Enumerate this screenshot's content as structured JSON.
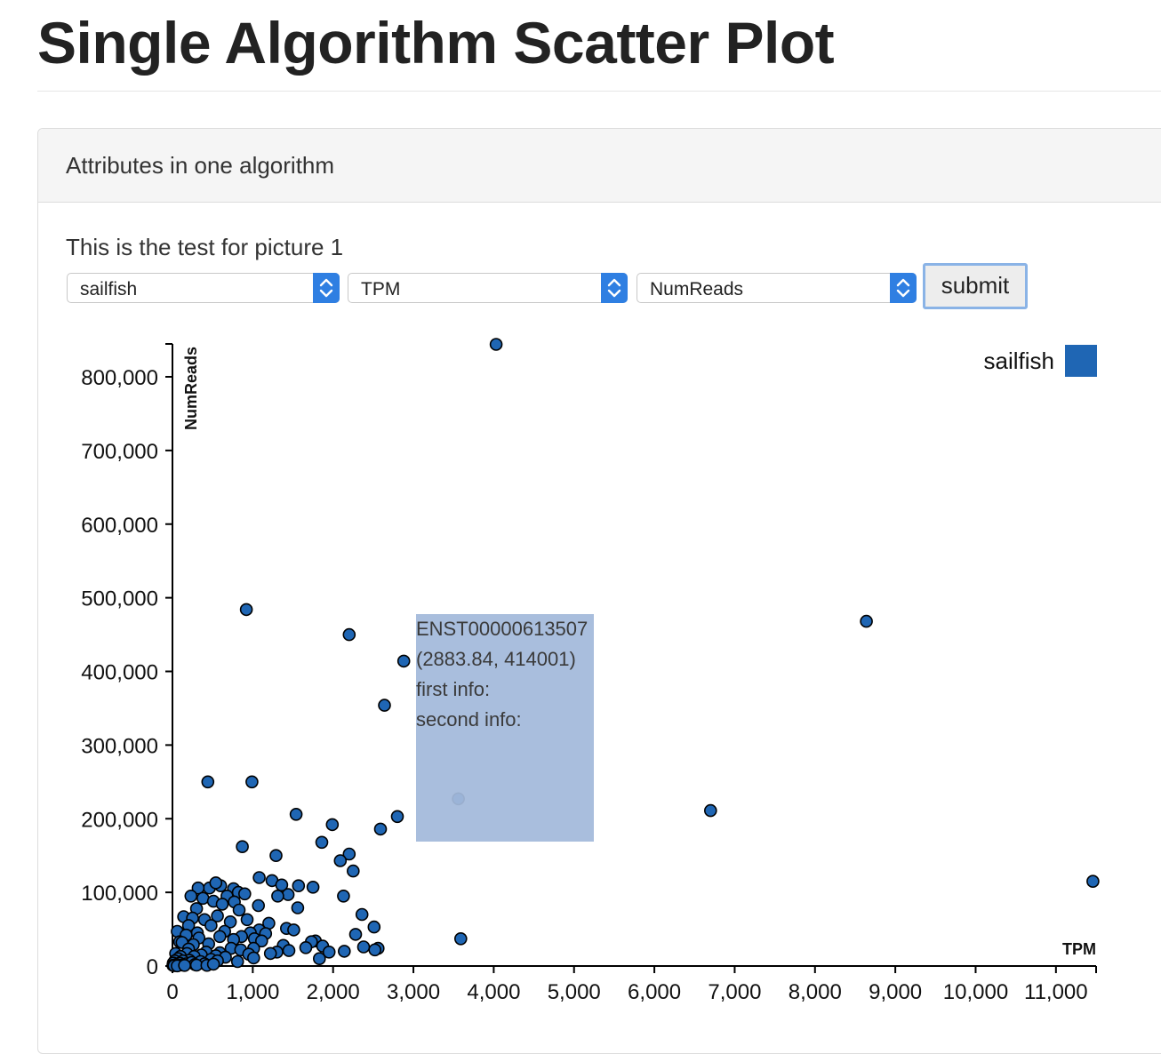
{
  "page": {
    "title": "Single Algorithm Scatter Plot"
  },
  "panel": {
    "heading": "Attributes in one algorithm",
    "subtitle": "This is the test for picture 1"
  },
  "controls": {
    "algorithm_select": "sailfish",
    "x_attribute_select": "TPM",
    "y_attribute_select": "NumReads",
    "submit_label": "submit"
  },
  "tooltip": {
    "id": "ENST00000613507",
    "coords": "(2883.84, 414001)",
    "first_info": "first info:",
    "second_info": "second info:"
  },
  "colors": {
    "series": "#1f66b4",
    "tooltip_bg": "#96b0d6",
    "select_arrow": "#2f7fe2"
  },
  "chart_data": {
    "type": "scatter",
    "xlabel": "TPM",
    "ylabel": "NumReads",
    "xlim": [
      0,
      11500
    ],
    "ylim": [
      0,
      845000
    ],
    "x_ticks": [
      0,
      1000,
      2000,
      3000,
      4000,
      5000,
      6000,
      7000,
      8000,
      9000,
      10000,
      11000
    ],
    "x_tick_labels": [
      "0",
      "1,000",
      "2,000",
      "3,000",
      "4,000",
      "5,000",
      "6,000",
      "7,000",
      "8,000",
      "9,000",
      "10,000",
      "11,000"
    ],
    "y_ticks": [
      0,
      100000,
      200000,
      300000,
      400000,
      500000,
      600000,
      700000,
      800000
    ],
    "y_tick_labels": [
      "0",
      "100,000",
      "200,000",
      "300,000",
      "400,000",
      "500,000",
      "600,000",
      "700,000",
      "800,000"
    ],
    "legend": {
      "position": "top-right",
      "entries": [
        "sailfish"
      ]
    },
    "grid": false,
    "series": [
      {
        "name": "sailfish",
        "points": [
          [
            4030,
            844000
          ],
          [
            920,
            484000
          ],
          [
            8640,
            468000
          ],
          [
            2200,
            450000
          ],
          [
            2880,
            414000
          ],
          [
            2640,
            354000
          ],
          [
            440,
            250000
          ],
          [
            990,
            250000
          ],
          [
            6700,
            211000
          ],
          [
            3560,
            227000
          ],
          [
            1540,
            206000
          ],
          [
            2800,
            203000
          ],
          [
            1990,
            192000
          ],
          [
            2590,
            186000
          ],
          [
            1860,
            168000
          ],
          [
            870,
            162000
          ],
          [
            2200,
            152000
          ],
          [
            1290,
            150000
          ],
          [
            2090,
            143000
          ],
          [
            2250,
            129000
          ],
          [
            11460,
            115000
          ],
          [
            1080,
            120000
          ],
          [
            1240,
            116000
          ],
          [
            1360,
            110000
          ],
          [
            1570,
            109000
          ],
          [
            1750,
            107000
          ],
          [
            460,
            106000
          ],
          [
            600,
            109000
          ],
          [
            320,
            106000
          ],
          [
            540,
            113000
          ],
          [
            760,
            105000
          ],
          [
            820,
            100000
          ],
          [
            900,
            98000
          ],
          [
            1440,
            97000
          ],
          [
            1310,
            95000
          ],
          [
            2130,
            95000
          ],
          [
            230,
            95000
          ],
          [
            680,
            95000
          ],
          [
            380,
            92000
          ],
          [
            510,
            88000
          ],
          [
            770,
            87000
          ],
          [
            620,
            84000
          ],
          [
            1070,
            82000
          ],
          [
            1560,
            79000
          ],
          [
            300,
            78000
          ],
          [
            830,
            76000
          ],
          [
            2360,
            70000
          ],
          [
            560,
            68000
          ],
          [
            140,
            67000
          ],
          [
            250,
            65000
          ],
          [
            930,
            63000
          ],
          [
            400,
            63000
          ],
          [
            720,
            60000
          ],
          [
            1200,
            58000
          ],
          [
            200,
            55000
          ],
          [
            480,
            55000
          ],
          [
            2510,
            53000
          ],
          [
            1420,
            51000
          ],
          [
            1510,
            49000
          ],
          [
            1080,
            49000
          ],
          [
            60,
            47000
          ],
          [
            650,
            47000
          ],
          [
            310,
            45000
          ],
          [
            970,
            45000
          ],
          [
            1160,
            44000
          ],
          [
            2280,
            43000
          ],
          [
            170,
            42000
          ],
          [
            860,
            40000
          ],
          [
            590,
            40000
          ],
          [
            330,
            38000
          ],
          [
            3590,
            37000
          ],
          [
            1020,
            37000
          ],
          [
            760,
            36000
          ],
          [
            1110,
            34000
          ],
          [
            1780,
            34000
          ],
          [
            1730,
            33000
          ],
          [
            90,
            33000
          ],
          [
            120,
            32000
          ],
          [
            450,
            30000
          ],
          [
            260,
            29000
          ],
          [
            1380,
            28000
          ],
          [
            1870,
            27000
          ],
          [
            2380,
            26000
          ],
          [
            1660,
            25000
          ],
          [
            2560,
            24000
          ],
          [
            2520,
            22000
          ],
          [
            1010,
            24000
          ],
          [
            200,
            23000
          ],
          [
            730,
            24000
          ],
          [
            850,
            22000
          ],
          [
            1450,
            21000
          ],
          [
            2140,
            20000
          ],
          [
            1950,
            19000
          ],
          [
            1300,
            19000
          ],
          [
            420,
            19000
          ],
          [
            590,
            18000
          ],
          [
            180,
            17000
          ],
          [
            40,
            17000
          ],
          [
            1220,
            17000
          ],
          [
            950,
            16000
          ],
          [
            360,
            15000
          ],
          [
            540,
            14000
          ],
          [
            100,
            13000
          ],
          [
            270,
            13000
          ],
          [
            660,
            12000
          ],
          [
            1010,
            11000
          ],
          [
            70,
            10000
          ],
          [
            1830,
            10000
          ],
          [
            480,
            9000
          ],
          [
            210,
            8000
          ],
          [
            30,
            7000
          ],
          [
            130,
            7000
          ],
          [
            560,
            7000
          ],
          [
            350,
            6000
          ],
          [
            810,
            6000
          ],
          [
            10,
            4000
          ],
          [
            90,
            4000
          ],
          [
            170,
            3000
          ],
          [
            240,
            5000
          ],
          [
            400,
            3000
          ],
          [
            50,
            2000
          ],
          [
            120,
            1500
          ],
          [
            280,
            2000
          ],
          [
            5,
            1000
          ],
          [
            20,
            500
          ],
          [
            60,
            300
          ],
          [
            150,
            800
          ],
          [
            300,
            1200
          ],
          [
            430,
            1000
          ],
          [
            510,
            2500
          ]
        ]
      }
    ]
  }
}
